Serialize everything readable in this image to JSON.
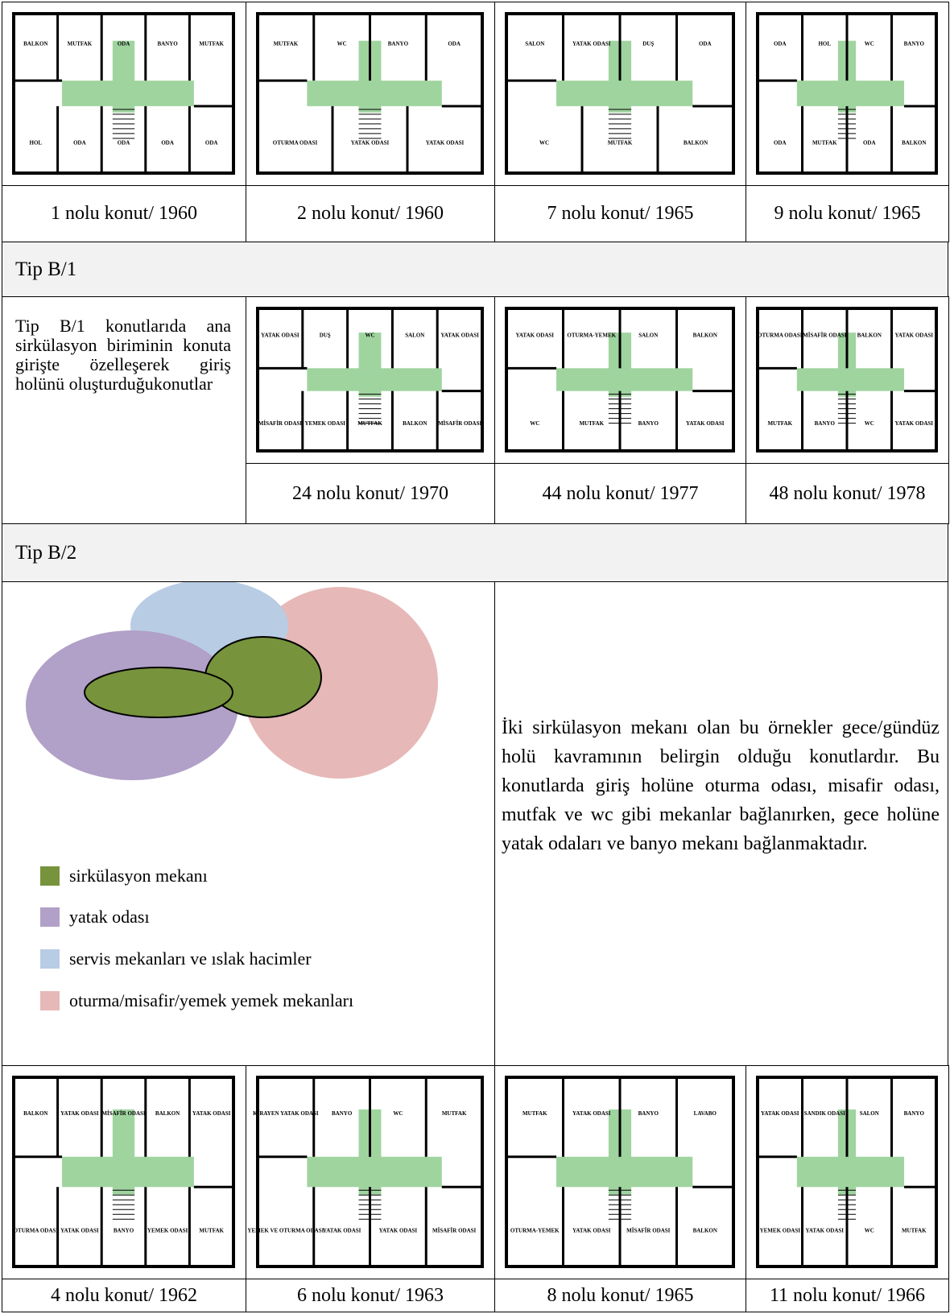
{
  "tip_a": {
    "plans": [
      {
        "caption": "1 nolu konut/ 1960",
        "labels": [
          "BALKON",
          "MUTFAK",
          "ODA",
          "BANYO",
          "MUTFAK",
          "HOL",
          "ODA",
          "ODA",
          "ODA",
          "ODA"
        ]
      },
      {
        "caption": "2 nolu konut/ 1960",
        "labels": [
          "MUTFAK",
          "WC",
          "BANYO",
          "ODA",
          "OTURMA ODASI",
          "YATAK ODASI",
          "YATAK ODASI"
        ]
      },
      {
        "caption": "7 nolu konut/ 1965",
        "labels": [
          "SALON",
          "YATAK ODASI",
          "DUŞ",
          "ODA",
          "WC",
          "MUTFAK",
          "BALKON"
        ]
      },
      {
        "caption": "9 nolu konut/ 1965",
        "labels": [
          "ODA",
          "HOL",
          "WC",
          "BANYO",
          "ODA",
          "MUTFAK",
          "ODA",
          "BALKON"
        ]
      }
    ]
  },
  "tip_b1": {
    "title": "Tip B/1",
    "description": "Tip B/1 konutlarıda ana sirkülasyon biriminin konuta girişte özelleşerek giriş holünü oluşturduğukonutlar",
    "plans": [
      {
        "caption": "24 nolu konut/ 1970",
        "labels": [
          "YATAK ODASI",
          "DUŞ",
          "WC",
          "SALON",
          "YATAK ODASI",
          "MİSAFİR ODASI",
          "YEMEK ODASI",
          "MUTFAK",
          "BALKON",
          "MİSAFİR ODASI"
        ]
      },
      {
        "caption": "44 nolu konut/ 1977",
        "labels": [
          "YATAK ODASI",
          "OTURMA-YEMEK",
          "SALON",
          "BALKON",
          "WC",
          "MUTFAK",
          "BANYO",
          "YATAK ODASI"
        ]
      },
      {
        "caption": "48 nolu konut/ 1978",
        "labels": [
          "OTURMA ODASI",
          "MİSAFİR ODASI",
          "BALKON",
          "YATAK ODASI",
          "MUTFAK",
          "BANYO",
          "WC",
          "YATAK ODASI"
        ]
      }
    ]
  },
  "tip_b2": {
    "title": "Tip B/2",
    "legend": [
      "sirkülasyon mekanı",
      "yatak odası",
      "servis mekanları ve ıslak hacimler",
      "oturma/misafir/yemek yemek mekanları"
    ],
    "description": "İki sirkülasyon mekanı olan bu örnekler gece/gündüz holü kavramının belirgin olduğu konutlardır. Bu konutlarda giriş holüne oturma odası, misafir odası, mutfak ve wc gibi mekanlar bağlanırken, gece holüne yatak odaları ve banyo mekanı bağlanmaktadır.",
    "plans": [
      {
        "caption": "4 nolu konut/ 1962",
        "labels": [
          "BALKON",
          "YATAK ODASI",
          "MİSAFİR ODASI",
          "BALKON",
          "YATAK ODASI",
          "OTURMA ODASI",
          "YATAK ODASI",
          "BANYO",
          "YEMEK ODASI",
          "MUTFAK"
        ]
      },
      {
        "caption": "6 nolu konut/ 1963",
        "labels": [
          "KİRAYEN YATAK ODASI",
          "BANYO",
          "WC",
          "MUTFAK",
          "YEMEK VE OTURMA ODASI",
          "YATAK ODASI",
          "YATAK ODASI",
          "MİSAFİR ODASI"
        ]
      },
      {
        "caption": "8 nolu konut/ 1965",
        "labels": [
          "MUTFAK",
          "YATAK ODASI",
          "BANYO",
          "LAVABO",
          "OTURMA-YEMEK",
          "YATAK ODASI",
          "MİSAFİR ODASI",
          "BALKON"
        ]
      },
      {
        "caption": "11 nolu konut/ 1966",
        "labels": [
          "YATAK ODASI",
          "SANDIK ODASI",
          "SALON",
          "BANYO",
          "YEMEK ODASI",
          "YATAK ODASI",
          "WC",
          "MUTFAK"
        ]
      }
    ]
  }
}
